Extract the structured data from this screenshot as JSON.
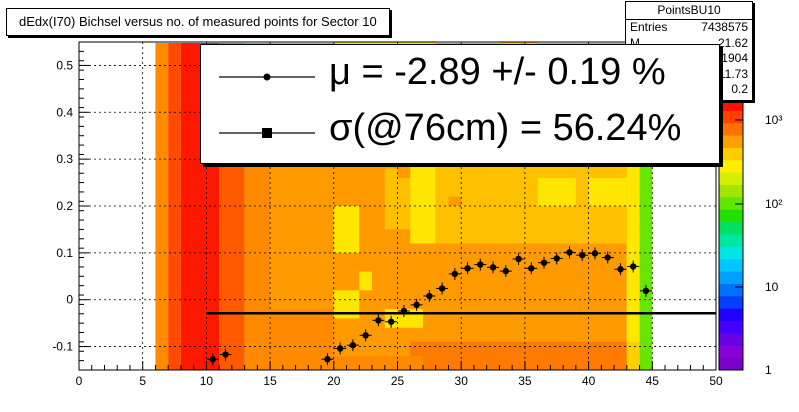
{
  "title": "dEdx(I70) Bichsel versus no. of measured points for Sector 10",
  "stats": {
    "name": "PointsBU10",
    "rows": [
      {
        "label": "Entries",
        "value": "7438575"
      },
      {
        "label": "M",
        "value": "21.62"
      },
      {
        "label": "",
        "value": "0.1904"
      },
      {
        "label": "",
        "value": "11.73"
      },
      {
        "label": "",
        "value": "0.2"
      }
    ]
  },
  "legend": {
    "mu": "μ  = -2.89 +/-  0.19 %",
    "sigma": "σ(@76cm) = 56.24%"
  },
  "colors": {
    "mean_points": "#000000",
    "fit_line": "#000000",
    "palette_low": "#7b00c8",
    "palette_high": "#ff0000"
  },
  "chart_data": {
    "type": "heatmap",
    "x_ticks": [
      "0",
      "5",
      "10",
      "15",
      "20",
      "25",
      "30",
      "35",
      "40",
      "45",
      "50"
    ],
    "y_ticks": [
      "-0.1",
      "0",
      "0.1",
      "0.2",
      "0.3",
      "0.4",
      "0.5"
    ],
    "z_ticks": [
      "1",
      "10",
      "10²",
      "10³"
    ],
    "xlim": [
      0,
      50
    ],
    "ylim": [
      -0.15,
      0.55
    ],
    "zlog": true,
    "grid": true,
    "heatmap_columns": [
      {
        "x0": 6,
        "x1": 7,
        "zone": "orange"
      },
      {
        "x0": 7,
        "x1": 8,
        "zone": "orange-red"
      },
      {
        "x0": 8,
        "x1": 11,
        "zone": "red"
      },
      {
        "x0": 11,
        "x1": 13,
        "zone": "dark-orange"
      },
      {
        "x0": 13,
        "x1": 15,
        "zone": "orange"
      },
      {
        "x0": 15,
        "x1": 20,
        "zone": "light-orange"
      },
      {
        "x0": 20,
        "x1": 43,
        "zone": "light-orange"
      },
      {
        "x0": 43,
        "x1": 44,
        "zone": "yellow"
      },
      {
        "x0": 44,
        "x1": 45,
        "zone": "green"
      }
    ],
    "mean_points": {
      "x": [
        10.5,
        11.5,
        19.5,
        20.5,
        21.5,
        22.5,
        23.5,
        24.5,
        25.5,
        26.5,
        27.5,
        28.5,
        29.5,
        30.5,
        31.5,
        32.5,
        33.5,
        34.5,
        35.5,
        36.5,
        37.5,
        38.5,
        39.5,
        40.5,
        41.5,
        42.5,
        43.5,
        44.5
      ],
      "y": [
        -0.127,
        -0.117,
        -0.127,
        -0.104,
        -0.097,
        -0.076,
        -0.044,
        -0.047,
        -0.024,
        -0.011,
        0.008,
        0.024,
        0.055,
        0.067,
        0.075,
        0.069,
        0.061,
        0.087,
        0.067,
        0.079,
        0.088,
        0.101,
        0.095,
        0.099,
        0.09,
        0.065,
        0.071,
        0.019
      ]
    },
    "fit_line": {
      "x": [
        10,
        50
      ],
      "y": -0.029
    }
  }
}
